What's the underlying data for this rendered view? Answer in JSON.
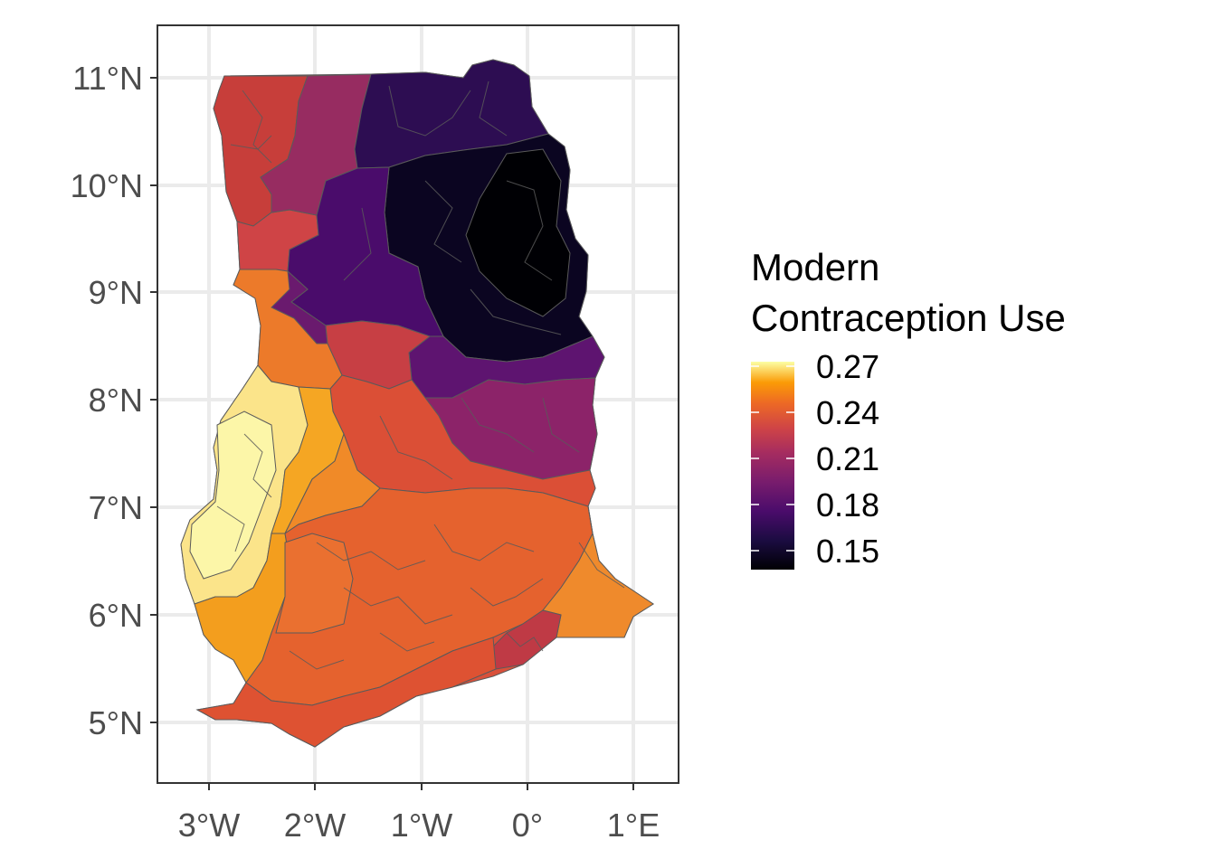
{
  "legend": {
    "title_line1": "Modern",
    "title_line2": "Contraception Use",
    "stops": [
      {
        "label": "0.27",
        "color": "#fcffa4"
      },
      {
        "label": "0.24",
        "color": "#f6a01a"
      },
      {
        "label": "0.21",
        "color": "#d9473a"
      },
      {
        "label": "0.18",
        "color": "#8b2169"
      },
      {
        "label": "0.15",
        "color": "#000004"
      }
    ]
  },
  "axes": {
    "x_ticks": [
      "3°W",
      "2°W",
      "1°W",
      "0°",
      "1°E"
    ],
    "y_ticks": [
      "11°N",
      "10°N",
      "9°N",
      "8°N",
      "7°N",
      "6°N",
      "5°N"
    ]
  },
  "chart_data": {
    "type": "choropleth",
    "region": "Ghana",
    "variable": "Modern Contraception Use",
    "scale": "inferno",
    "value_range": [
      0.14,
      0.28
    ],
    "xlim": [
      -3.5,
      1.4
    ],
    "ylim": [
      4.5,
      11.5
    ],
    "grid": true,
    "legend_position": "right",
    "approximate_zones": [
      {
        "name": "far-northwest",
        "value": 0.21
      },
      {
        "name": "upper-west-east",
        "value": 0.19
      },
      {
        "name": "upper-east",
        "value": 0.165
      },
      {
        "name": "northeast",
        "value": 0.15
      },
      {
        "name": "north-central",
        "value": 0.17
      },
      {
        "name": "central-north-strip",
        "value": 0.21
      },
      {
        "name": "west-corridor",
        "value": 0.24
      },
      {
        "name": "middle-band",
        "value": 0.215
      },
      {
        "name": "east-middle",
        "value": 0.18
      },
      {
        "name": "far-west",
        "value": 0.275
      },
      {
        "name": "southwest",
        "value": 0.245
      },
      {
        "name": "south-central",
        "value": 0.22
      },
      {
        "name": "southeast",
        "value": 0.235
      },
      {
        "name": "accra-area",
        "value": 0.2
      }
    ]
  }
}
